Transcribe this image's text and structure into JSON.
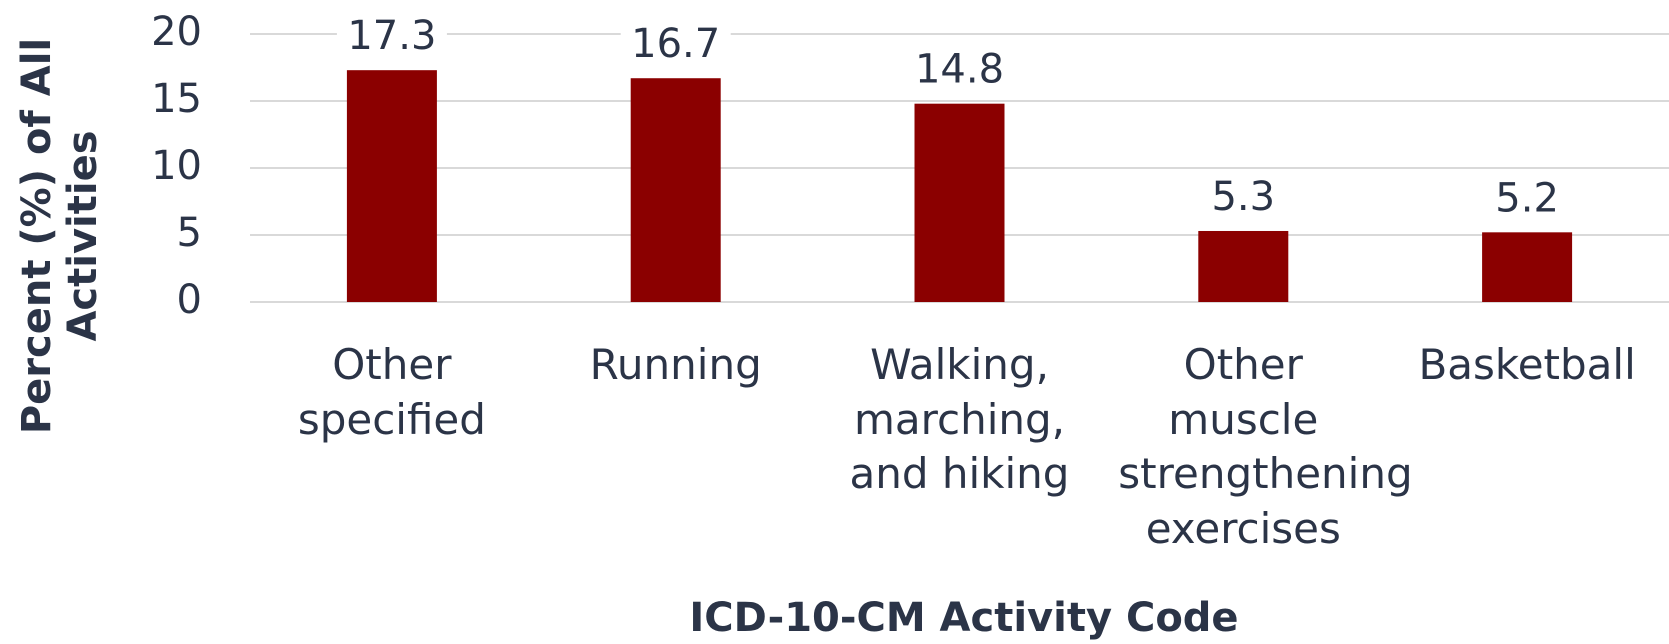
{
  "chart_data": {
    "type": "bar",
    "x_label": "ICD-10-CM Activity Code",
    "y_label": "Percent (%) of All Activities",
    "categories": [
      "Other specified",
      "Running",
      "Walking, marching, and hiking",
      "Other muscle strengthening exercises",
      "Basketball"
    ],
    "values": [
      17.3,
      16.7,
      14.8,
      5.3,
      5.2
    ],
    "color": "#8b0000",
    "ylim": [
      0,
      20
    ],
    "yticks": [
      0,
      5,
      10,
      15,
      20
    ],
    "grid": true
  }
}
